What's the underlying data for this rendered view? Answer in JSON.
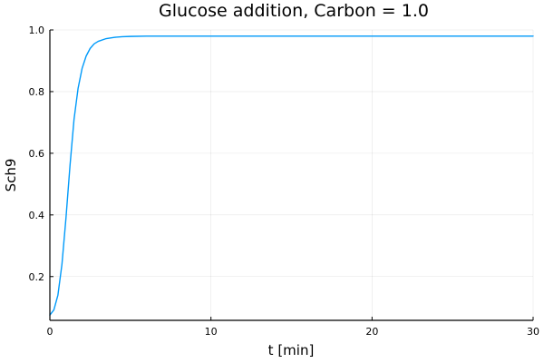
{
  "chart_data": {
    "type": "line",
    "title": "Glucose addition, Carbon = 1.0",
    "xlabel": "t [min]",
    "ylabel": "Sch9",
    "xlim": [
      0,
      30
    ],
    "ylim": [
      0.058,
      1.0
    ],
    "xticks": [
      0,
      10,
      20,
      30
    ],
    "yticks": [
      0.2,
      0.4,
      0.6,
      0.8,
      1.0
    ],
    "xtick_labels": [
      "0",
      "10",
      "20",
      "30"
    ],
    "ytick_labels": [
      "0.2",
      "0.4",
      "0.6",
      "0.8",
      "1.0"
    ],
    "grid": true,
    "legend": "none",
    "series": [
      {
        "color": "#009AFA",
        "x": [
          0,
          0.25,
          0.5,
          0.75,
          1.0,
          1.25,
          1.5,
          1.75,
          2.0,
          2.25,
          2.5,
          2.75,
          3.0,
          3.5,
          4.0,
          4.5,
          5.0,
          6.0,
          7.0,
          8.0,
          10.0,
          15.0,
          20.0,
          25.0,
          30.0
        ],
        "y": [
          0.075,
          0.092,
          0.14,
          0.24,
          0.39,
          0.56,
          0.71,
          0.81,
          0.875,
          0.915,
          0.94,
          0.955,
          0.963,
          0.972,
          0.976,
          0.978,
          0.979,
          0.98,
          0.98,
          0.98,
          0.98,
          0.98,
          0.98,
          0.98,
          0.98
        ]
      }
    ]
  }
}
